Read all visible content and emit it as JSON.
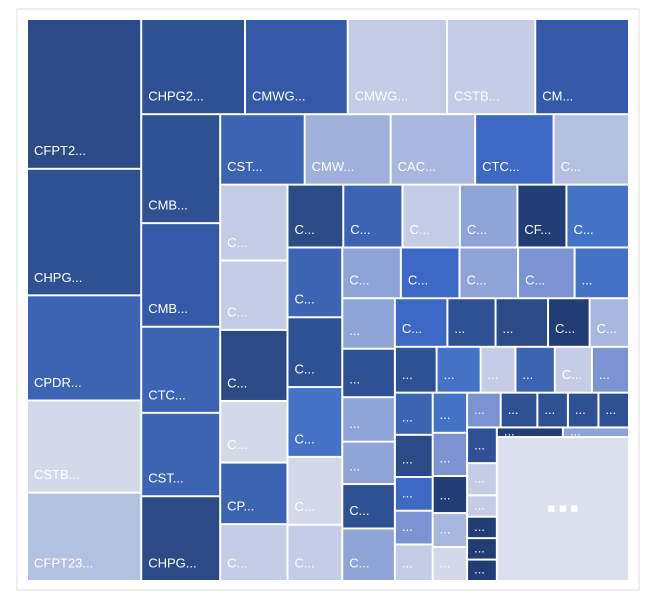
{
  "chart_data": {
    "type": "treemap",
    "categories": [
      "CFPT2...",
      "CHPG...",
      "CPDR...",
      "CSTB...",
      "CFPT23...",
      "CHPG2...",
      "CMWG...",
      "CMWG...",
      "CSTB...",
      "CM...",
      "CMB...",
      "CMB...",
      "CTC...",
      "CST...",
      "CHPG...",
      "CST...",
      "CMW...",
      "CAC...",
      "CTC...",
      "C...",
      "C...",
      "C...",
      "C...",
      "C...",
      "CP...",
      "C...",
      "C...",
      "C...",
      "C...",
      "C...",
      "CF...",
      "C...",
      "C...",
      "C...",
      "C...",
      "C...",
      "C...",
      "C...",
      "C...",
      "C...",
      "C...",
      "...",
      "...",
      "...",
      "...",
      "...",
      "C...",
      "C...",
      "C...",
      "...",
      "...",
      "C...",
      "C...",
      "...",
      "...",
      "...",
      "...",
      "C...",
      "...",
      "...",
      "...",
      "...",
      "...",
      "...",
      "...",
      "...",
      "...",
      "...",
      "...",
      "...",
      "...",
      "...",
      "...",
      "...",
      "...",
      "...",
      "...",
      "...",
      "...",
      "...",
      "...",
      "...",
      "■ ■ ■"
    ],
    "values": [
      161,
      136,
      113,
      99,
      95,
      93,
      92,
      89,
      79,
      84,
      81,
      77,
      64,
      62,
      63,
      56,
      57,
      56,
      52,
      50,
      48,
      44,
      45,
      39,
      39,
      36,
      33,
      35,
      34,
      34,
      29,
      37,
      36,
      36,
      36,
      35,
      29,
      28,
      28,
      28,
      27,
      26,
      25,
      24,
      22,
      21,
      22,
      26,
      24,
      22,
      24,
      19,
      18,
      18,
      19,
      15,
      17,
      16,
      16,
      15,
      15,
      12,
      12,
      13,
      13,
      14,
      12,
      11,
      11,
      11,
      12,
      10,
      10,
      10,
      10,
      9,
      6,
      6,
      6,
      6,
      6,
      6,
      179
    ],
    "colors": [
      "#2b4a86",
      "#2f5194",
      "#3d63b3",
      "#d4d9e9",
      "#b4c0e0",
      "#2f5194",
      "#3459a6",
      "#c5cce6",
      "#c5cce6",
      "#3459a6",
      "#2f5194",
      "#3459a6",
      "#3d63b3",
      "#3d63b3",
      "#2b4a86",
      "#3d63b3",
      "#9fb0dc",
      "#a9b7df",
      "#3d68c4",
      "#b4c0e0",
      "#c5cce6",
      "#c5cce6",
      "#2b4a86",
      "#d4d9e9",
      "#3d63b3",
      "#c5cce6",
      "#2b4a86",
      "#3d63b3",
      "#c5cce6",
      "#8fa3d6",
      "#223d73",
      "#4472c4",
      "#3d63b3",
      "#2f5194",
      "#4472c4",
      "#d4d9e9",
      "#c5cce6",
      "#8fa3d6",
      "#3d68c4",
      "#8fa3d6",
      "#7b93d0",
      "#4472c4",
      "#8fa3d6",
      "#2f5194",
      "#8fa3d6",
      "#8fa3d6",
      "#2f5194",
      "#8fa3d6",
      "#3d68c4",
      "#2f5194",
      "#2b4a86",
      "#223d73",
      "#a9b7df",
      "#2f5194",
      "#4472c4",
      "#c5cce6",
      "#3d63b3",
      "#c5cce6",
      "#7b93d0",
      "#3d63b3",
      "#2b4a86",
      "#3d68c4",
      "#7b93d0",
      "#c5cce6",
      "#4472c4",
      "#7b93d0",
      "#223d73",
      "#a9b7df",
      "#d4d9e9",
      "#7b93d0",
      "#2f5194",
      "#2f5194",
      "#2f5194",
      "#2f5194",
      "#2f5194",
      "#c5cce6",
      "#c5cce6",
      "#223d73",
      "#223d73",
      "#223d73",
      "#223d73",
      "#8fa3d6",
      "#dcdfee"
    ]
  }
}
